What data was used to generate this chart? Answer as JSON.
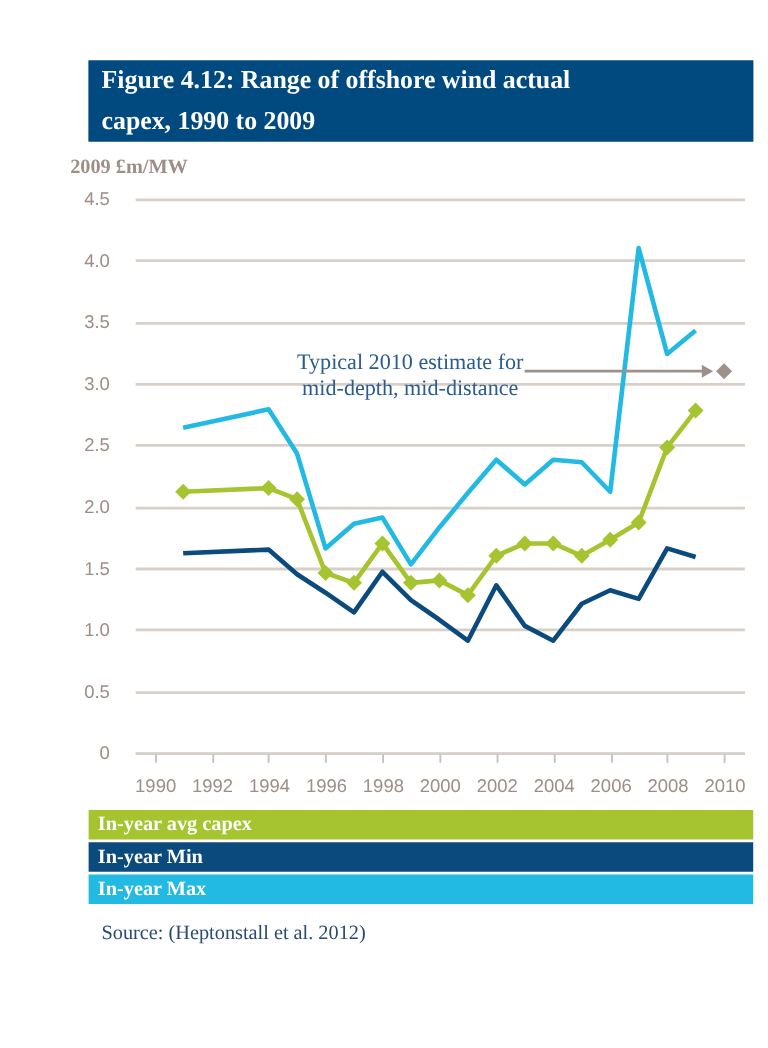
{
  "chart_data": {
    "type": "line",
    "title": "Figure 4.12: Range of offshore wind actual capex, 1990 to 2009",
    "ylabel": "2009 £m/MW",
    "x": [
      1991,
      1994,
      1995,
      1996,
      1997,
      1998,
      1999,
      2000,
      2001,
      2002,
      2003,
      2004,
      2005,
      2006,
      2007,
      2008,
      2009
    ],
    "series": [
      {
        "name": "In-year avg capex",
        "color": "#a5c42f",
        "marker": "diamond",
        "values": [
          2.12,
          2.15,
          2.06,
          1.46,
          1.38,
          1.7,
          1.38,
          1.4,
          1.28,
          1.6,
          1.7,
          1.7,
          1.6,
          1.73,
          1.87,
          2.48,
          2.78
        ]
      },
      {
        "name": "In-year Min",
        "color": "#0b4a7d",
        "values": [
          1.62,
          1.65,
          1.45,
          1.3,
          1.14,
          1.47,
          1.24,
          1.08,
          0.91,
          1.36,
          1.03,
          0.91,
          1.21,
          1.32,
          1.25,
          1.66,
          1.59
        ]
      },
      {
        "name": "In-year Max",
        "color": "#22b9e3",
        "values": [
          2.64,
          2.79,
          2.43,
          1.66,
          1.86,
          1.91,
          1.53,
          1.83,
          2.11,
          2.38,
          2.18,
          2.38,
          2.36,
          2.12,
          4.1,
          3.24,
          3.43
        ]
      },
      {
        "type": "scatter",
        "color": "#9e918a",
        "marker": "diamond",
        "x": [
          2010
        ],
        "values": [
          3.1
        ]
      }
    ],
    "xlim": [
      1989.3,
      2010.7
    ],
    "xticks": [
      1990,
      1992,
      1994,
      1996,
      1998,
      2000,
      2002,
      2004,
      2006,
      2008,
      2010
    ],
    "ylim": [
      0,
      4.5
    ],
    "yticks": [
      0,
      {
        "value": 0.5,
        "label": "0.5"
      },
      {
        "value": 1,
        "label": "1.0"
      },
      {
        "value": 1.5,
        "label": "1.5"
      },
      {
        "value": 2,
        "label": "2.0"
      },
      {
        "value": 2.5,
        "label": "2.5"
      },
      {
        "value": 3,
        "label": "3.0"
      },
      {
        "value": 3.5,
        "label": "3.5"
      },
      {
        "value": 4,
        "label": "4.0"
      },
      {
        "value": 4.5,
        "label": "4.5"
      }
    ],
    "grid": "y",
    "legend": "bottom",
    "line_style": "solid",
    "annotations": [
      {
        "text": "Typical 2010 estimate for mid-depth,  mid-distance",
        "x": 2010,
        "y": 3.1
      },
      "Source: (Heptonstall et al. 2012)"
    ]
  }
}
